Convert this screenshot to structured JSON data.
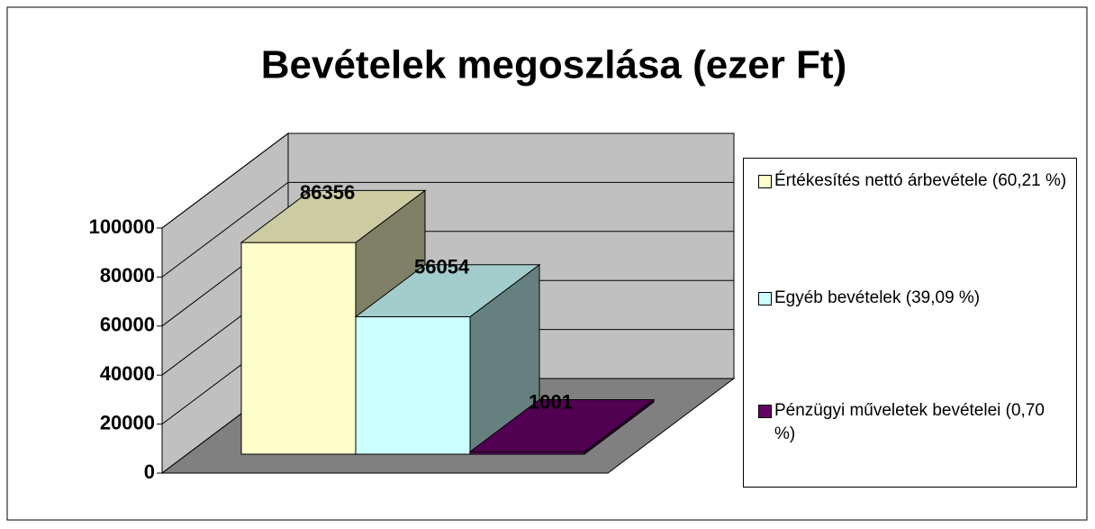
{
  "chart_data": {
    "type": "bar3d",
    "title": "Bevételek megoszlása (ezer Ft)",
    "series": [
      {
        "name": "Értékesítés nettó árbevétele (60,21 %)",
        "color": "#ffffcc",
        "values": [
          86356
        ]
      },
      {
        "name": "Egyéb bevételek (39,09 %)",
        "color": "#ccffff",
        "values": [
          56054
        ]
      },
      {
        "name": "Pénzügyi műveletek bevételei (0,70 %)",
        "color": "#660066",
        "values": [
          1001
        ]
      }
    ],
    "ylim": [
      0,
      100000
    ],
    "yticks": [
      0,
      20000,
      40000,
      60000,
      80000,
      100000
    ],
    "grid": true,
    "legend": "right"
  }
}
